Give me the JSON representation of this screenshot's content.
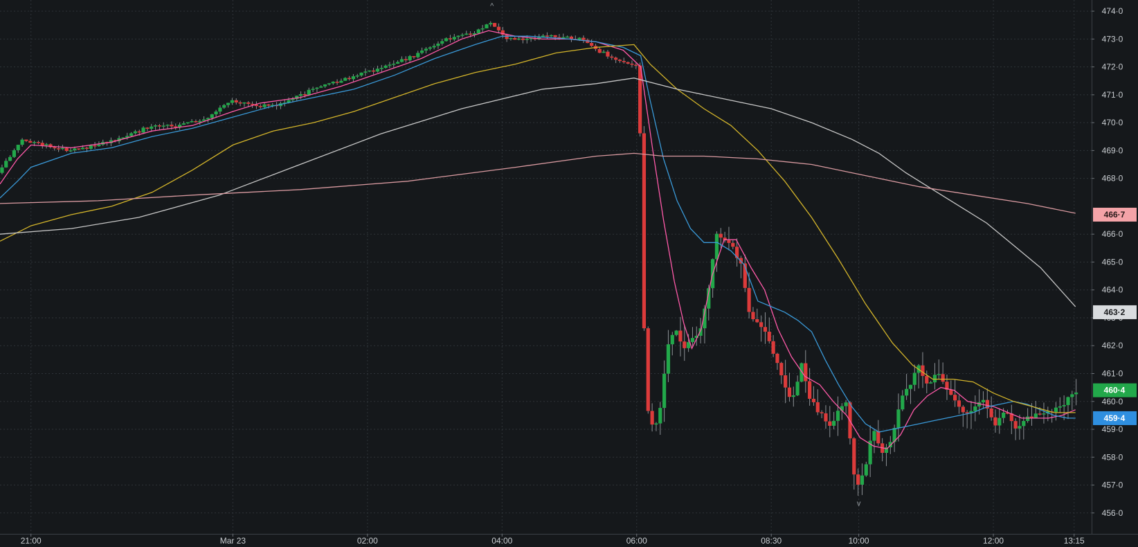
{
  "chart_data": {
    "type": "candlestick",
    "x_axis": {
      "ticks": [
        {
          "label": "21:00",
          "t": 0
        },
        {
          "label": "Mar 23",
          "t": 15
        },
        {
          "label": "02:00",
          "t": 25
        },
        {
          "label": "04:00",
          "t": 35
        },
        {
          "label": "06:00",
          "t": 45
        },
        {
          "label": "08:30",
          "t": 55
        },
        {
          "label": "10:00",
          "t": 61.5
        },
        {
          "label": "12:00",
          "t": 71.5
        },
        {
          "label": "13:15",
          "t": 77.5
        }
      ],
      "range": [
        -2.3,
        78.8
      ]
    },
    "y_axis": {
      "ticks": [
        {
          "label": "474·0",
          "v": 474
        },
        {
          "label": "473·0",
          "v": 473
        },
        {
          "label": "472·0",
          "v": 472
        },
        {
          "label": "471·0",
          "v": 471
        },
        {
          "label": "470·0",
          "v": 470
        },
        {
          "label": "469·0",
          "v": 469
        },
        {
          "label": "468·0",
          "v": 468
        },
        {
          "label": "466·0",
          "v": 466
        },
        {
          "label": "465·0",
          "v": 465
        },
        {
          "label": "464·0",
          "v": 464
        },
        {
          "label": "463·0",
          "v": 463
        },
        {
          "label": "462·0",
          "v": 462
        },
        {
          "label": "461·0",
          "v": 461
        },
        {
          "label": "460·0",
          "v": 460
        },
        {
          "label": "459·0",
          "v": 459
        },
        {
          "label": "458·0",
          "v": 458
        },
        {
          "label": "457·0",
          "v": 457
        },
        {
          "label": "456·0",
          "v": 456
        }
      ],
      "range": [
        455.25,
        474.4
      ]
    },
    "grid": true,
    "price_tags": [
      {
        "label": "466·7",
        "v": 466.7,
        "color": "#f4a3a8",
        "text_color": "#2a1a1a"
      },
      {
        "label": "463·2",
        "v": 463.2,
        "color": "#d9dcdf",
        "text_color": "#1a1c1e"
      },
      {
        "label": "460·4",
        "v": 460.4,
        "color": "#22a84a",
        "text_color": "#ffffff"
      },
      {
        "label": "459·4",
        "v": 459.4,
        "color": "#2f8fe0",
        "text_color": "#ffffff"
      }
    ],
    "extreme_markers": [
      {
        "t": 34.25,
        "v": 474.0,
        "label": "^"
      },
      {
        "t": 61.5,
        "v": 456.5,
        "label": "v"
      }
    ],
    "anchors": [
      [
        -2.3,
        468.2
      ],
      [
        -0.5,
        469.4
      ],
      [
        1,
        469.2
      ],
      [
        3,
        469.0
      ],
      [
        5,
        469.2
      ],
      [
        7,
        469.5
      ],
      [
        9,
        469.9
      ],
      [
        11,
        469.9
      ],
      [
        13,
        470.1
      ],
      [
        15,
        470.8
      ],
      [
        17,
        470.6
      ],
      [
        19,
        470.7
      ],
      [
        21,
        471.2
      ],
      [
        23,
        471.5
      ],
      [
        25,
        471.8
      ],
      [
        27,
        472.1
      ],
      [
        29,
        472.5
      ],
      [
        31,
        473.0
      ],
      [
        33,
        473.2
      ],
      [
        34.3,
        473.6
      ],
      [
        35.5,
        473.0
      ],
      [
        37,
        473.0
      ],
      [
        39,
        473.1
      ],
      [
        41,
        473.0
      ],
      [
        42.5,
        472.5
      ],
      [
        44,
        472.2
      ],
      [
        45.3,
        472.0
      ],
      [
        45.8,
        460.2
      ],
      [
        46.3,
        459.1
      ],
      [
        46.8,
        459.3
      ],
      [
        47.4,
        461.9
      ],
      [
        48,
        462.6
      ],
      [
        48.6,
        461.8
      ],
      [
        49.3,
        462.2
      ],
      [
        49.9,
        462.6
      ],
      [
        50.5,
        464.0
      ],
      [
        51.1,
        466.0
      ],
      [
        51.7,
        465.8
      ],
      [
        52.3,
        465.5
      ],
      [
        52.9,
        464.9
      ],
      [
        53.5,
        463.2
      ],
      [
        54.1,
        462.9
      ],
      [
        54.7,
        462.6
      ],
      [
        55.3,
        461.8
      ],
      [
        56,
        460.8
      ],
      [
        56.7,
        459.9
      ],
      [
        57.4,
        461.4
      ],
      [
        58.1,
        460.0
      ],
      [
        58.8,
        459.6
      ],
      [
        59.4,
        459.1
      ],
      [
        60.1,
        459.6
      ],
      [
        60.7,
        459.9
      ],
      [
        61.4,
        456.9
      ],
      [
        62.1,
        457.6
      ],
      [
        62.7,
        459.1
      ],
      [
        63.4,
        458.1
      ],
      [
        64,
        458.6
      ],
      [
        64.7,
        459.9
      ],
      [
        65.4,
        460.6
      ],
      [
        66.1,
        461.2
      ],
      [
        66.8,
        460.6
      ],
      [
        67.5,
        461.2
      ],
      [
        68.2,
        460.4
      ],
      [
        68.9,
        460.1
      ],
      [
        69.5,
        459.4
      ],
      [
        70.2,
        459.9
      ],
      [
        71,
        460.0
      ],
      [
        71.8,
        459.2
      ],
      [
        72.6,
        459.7
      ],
      [
        73.3,
        459.0
      ],
      [
        74,
        459.4
      ],
      [
        74.7,
        459.5
      ],
      [
        75.4,
        459.6
      ],
      [
        76.1,
        459.7
      ],
      [
        77,
        459.9
      ],
      [
        77.6,
        460.4
      ]
    ],
    "series": [
      {
        "color": "#ff5aa9",
        "line": [
          [
            -2.3,
            467.8
          ],
          [
            -1,
            468.7
          ],
          [
            0,
            469.2
          ],
          [
            3,
            469.1
          ],
          [
            6,
            469.3
          ],
          [
            9,
            469.7
          ],
          [
            12,
            469.9
          ],
          [
            15,
            470.4
          ],
          [
            17,
            470.7
          ],
          [
            20,
            470.9
          ],
          [
            23,
            471.3
          ],
          [
            26,
            471.8
          ],
          [
            29,
            472.3
          ],
          [
            32,
            473.0
          ],
          [
            34,
            473.3
          ],
          [
            36,
            473.1
          ],
          [
            38,
            473.0
          ],
          [
            40,
            473.0
          ],
          [
            42,
            472.9
          ],
          [
            44,
            472.6
          ],
          [
            45.3,
            472.0
          ],
          [
            46.2,
            469.0
          ],
          [
            47,
            466.5
          ],
          [
            47.8,
            464.3
          ],
          [
            48.5,
            462.8
          ],
          [
            49.1,
            461.9
          ],
          [
            49.8,
            462.6
          ],
          [
            50.6,
            464.5
          ],
          [
            51.5,
            465.8
          ],
          [
            52.4,
            465.8
          ],
          [
            53.5,
            464.8
          ],
          [
            54.5,
            464.0
          ],
          [
            55.5,
            462.6
          ],
          [
            56.5,
            461.6
          ],
          [
            57.5,
            460.9
          ],
          [
            58.6,
            460.6
          ],
          [
            59.6,
            460.0
          ],
          [
            60.6,
            459.5
          ],
          [
            61.6,
            458.7
          ],
          [
            62.6,
            458.4
          ],
          [
            63.6,
            458.3
          ],
          [
            64.6,
            458.8
          ],
          [
            65.6,
            459.7
          ],
          [
            66.6,
            460.2
          ],
          [
            67.6,
            460.5
          ],
          [
            68.6,
            460.4
          ],
          [
            69.6,
            460.0
          ],
          [
            70.6,
            459.9
          ],
          [
            71.6,
            459.8
          ],
          [
            72.6,
            459.6
          ],
          [
            73.6,
            459.4
          ],
          [
            74.6,
            459.4
          ],
          [
            75.6,
            459.4
          ],
          [
            76.6,
            459.5
          ],
          [
            77.6,
            459.7
          ]
        ]
      },
      {
        "color": "#3a9ad9",
        "line": [
          [
            -2.3,
            467.3
          ],
          [
            -1,
            467.9
          ],
          [
            0,
            468.4
          ],
          [
            3,
            468.9
          ],
          [
            6,
            469.1
          ],
          [
            9,
            469.5
          ],
          [
            12,
            469.8
          ],
          [
            15,
            470.2
          ],
          [
            18,
            470.6
          ],
          [
            21,
            470.9
          ],
          [
            24,
            471.2
          ],
          [
            27,
            471.7
          ],
          [
            30,
            472.3
          ],
          [
            33,
            472.8
          ],
          [
            35,
            473.1
          ],
          [
            37,
            473.1
          ],
          [
            40,
            473.0
          ],
          [
            42,
            472.9
          ],
          [
            44,
            472.7
          ],
          [
            45.3,
            472.4
          ],
          [
            46,
            470.8
          ],
          [
            47,
            468.7
          ],
          [
            48,
            467.2
          ],
          [
            49,
            466.2
          ],
          [
            50,
            465.7
          ],
          [
            51,
            465.7
          ],
          [
            52,
            465.4
          ],
          [
            53,
            464.9
          ],
          [
            54,
            463.6
          ],
          [
            55,
            463.4
          ],
          [
            56,
            463.2
          ],
          [
            57,
            462.9
          ],
          [
            58,
            462.5
          ],
          [
            59,
            461.5
          ],
          [
            60,
            460.6
          ],
          [
            61,
            459.8
          ],
          [
            62,
            459.2
          ],
          [
            63,
            458.9
          ],
          [
            64,
            459.0
          ],
          [
            65,
            459.1
          ],
          [
            66,
            459.2
          ],
          [
            67,
            459.3
          ],
          [
            68,
            459.4
          ],
          [
            69,
            459.5
          ],
          [
            70,
            459.6
          ],
          [
            71,
            459.8
          ],
          [
            72,
            459.9
          ],
          [
            73,
            460.0
          ],
          [
            74,
            459.9
          ],
          [
            75,
            459.7
          ],
          [
            76,
            459.5
          ],
          [
            77,
            459.4
          ],
          [
            77.6,
            459.4
          ]
        ]
      },
      {
        "color": "#d4b52a",
        "line": [
          [
            -2.3,
            465.75
          ],
          [
            0,
            466.3
          ],
          [
            3,
            466.7
          ],
          [
            6,
            467.0
          ],
          [
            9,
            467.5
          ],
          [
            12,
            468.3
          ],
          [
            15,
            469.2
          ],
          [
            18,
            469.7
          ],
          [
            21,
            470.0
          ],
          [
            24,
            470.4
          ],
          [
            27,
            470.9
          ],
          [
            30,
            471.4
          ],
          [
            33,
            471.8
          ],
          [
            36,
            472.1
          ],
          [
            39,
            472.5
          ],
          [
            42,
            472.7
          ],
          [
            44.8,
            472.8
          ],
          [
            46,
            472.1
          ],
          [
            48,
            471.2
          ],
          [
            50,
            470.5
          ],
          [
            52,
            469.9
          ],
          [
            54,
            469.0
          ],
          [
            56,
            467.9
          ],
          [
            58,
            466.6
          ],
          [
            60,
            465.1
          ],
          [
            62,
            463.5
          ],
          [
            64,
            462.1
          ],
          [
            65.5,
            461.3
          ],
          [
            67,
            460.8
          ],
          [
            68.5,
            460.8
          ],
          [
            70,
            460.7
          ],
          [
            71.5,
            460.3
          ],
          [
            73,
            460.0
          ],
          [
            74.5,
            459.8
          ],
          [
            76,
            459.6
          ],
          [
            77.6,
            459.6
          ]
        ]
      },
      {
        "color": "#c8c8c8",
        "line": [
          [
            -2.3,
            466.0
          ],
          [
            3,
            466.2
          ],
          [
            8,
            466.6
          ],
          [
            14,
            467.4
          ],
          [
            20,
            468.5
          ],
          [
            26,
            469.6
          ],
          [
            32,
            470.5
          ],
          [
            38,
            471.2
          ],
          [
            42,
            471.4
          ],
          [
            44.8,
            471.6
          ],
          [
            48,
            471.2
          ],
          [
            52,
            470.8
          ],
          [
            55,
            470.5
          ],
          [
            58,
            470.0
          ],
          [
            61,
            469.4
          ],
          [
            63,
            468.9
          ],
          [
            65,
            468.2
          ],
          [
            67,
            467.6
          ],
          [
            69,
            467.0
          ],
          [
            71,
            466.4
          ],
          [
            73,
            465.6
          ],
          [
            75,
            464.8
          ],
          [
            77.6,
            463.4
          ]
        ]
      },
      {
        "color": "#d99aa0",
        "line": [
          [
            -2.3,
            467.1
          ],
          [
            5,
            467.2
          ],
          [
            12,
            467.4
          ],
          [
            20,
            467.6
          ],
          [
            28,
            467.9
          ],
          [
            36,
            468.4
          ],
          [
            42,
            468.8
          ],
          [
            44.8,
            468.9
          ],
          [
            47,
            468.8
          ],
          [
            50,
            468.8
          ],
          [
            54,
            468.7
          ],
          [
            58,
            468.5
          ],
          [
            62,
            468.1
          ],
          [
            66,
            467.7
          ],
          [
            70,
            467.4
          ],
          [
            74,
            467.1
          ],
          [
            77.6,
            466.75
          ]
        ]
      }
    ]
  }
}
